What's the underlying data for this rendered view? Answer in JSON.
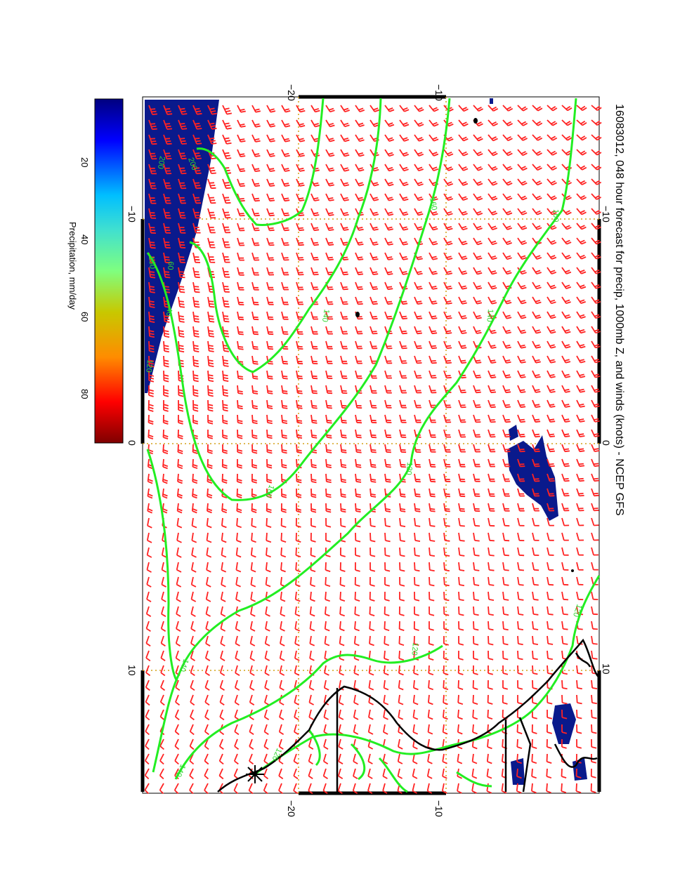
{
  "title": "16083012, 048 hour forecast for precip, 1000mb Z, and winds (knots) - NCEP GFS",
  "colorbar": {
    "label": "Precipitation, mm/day",
    "ticks": [
      "20",
      "40",
      "60",
      "80"
    ],
    "stops": [
      "#00007f",
      "#0000ff",
      "#00bfff",
      "#40e0d0",
      "#7fff7f",
      "#c8c800",
      "#ff8c00",
      "#ff0000",
      "#7f0000"
    ]
  },
  "axes": {
    "top_ticks": [
      "−20",
      "−10"
    ],
    "right_ticks": [
      "−10",
      "0",
      "10"
    ],
    "left_ticks": [
      "−10",
      "0",
      "10"
    ],
    "bottom_ticks": [
      "−20",
      "−10"
    ]
  },
  "contour_labels": [
    "200",
    "160",
    "140",
    "120",
    "160",
    "140",
    "160",
    "140",
    "120",
    "120",
    "140",
    "120",
    "160",
    "60",
    "40",
    "120",
    "200"
  ],
  "colors": {
    "contour": "#22ee22",
    "barb": "#ff2222",
    "coast": "#000000",
    "grid": "#d4a017",
    "precip": "#0a1a8c"
  },
  "icons": {
    "star": "asterisk-marker",
    "barbs": "wind-barb"
  }
}
